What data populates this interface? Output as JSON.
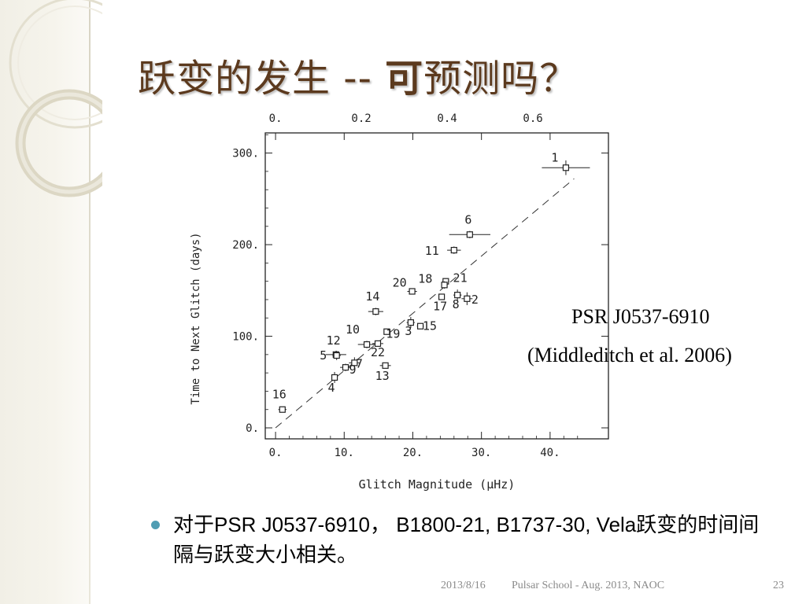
{
  "slide": {
    "title_part1": "跃变的发生 -- ",
    "title_part2": "可",
    "title_part3": "预测吗？",
    "annotation_line1": "PSR J0537-6910",
    "annotation_line2": "(Middleditch et al. 2006)",
    "bullet": "对于PSR J0537-6910， B1800-21, B1737-30, Vela跃变的时间间隔与跃变大小相关。",
    "footer_date": "2013/8/16",
    "footer_event": "Pulsar School  - Aug. 2013, NAOC",
    "footer_page": "23",
    "colors": {
      "title": "#5c3a1e",
      "bullet": "#4f9db3",
      "footer": "#8a8a8a"
    }
  },
  "chart_data": {
    "type": "scatter",
    "xlabel": "Glitch Magnitude (μHz)",
    "ylabel": "Time to Next Glitch (days)",
    "xlim": [
      -1.5,
      48.5
    ],
    "ylim": [
      -12,
      322
    ],
    "x_ticks": [
      "0.",
      "10.",
      "20.",
      "30.",
      "40."
    ],
    "y_ticks": [
      "0.",
      "100.",
      "200.",
      "300."
    ],
    "top_axis_ticks": [
      "0.",
      "0.2",
      "0.4",
      "0.6"
    ],
    "top_axis_values": [
      0,
      0.2,
      0.4,
      0.6
    ],
    "top_axis_scale": 62.5,
    "fit_line": {
      "x": [
        0,
        43.5
      ],
      "y": [
        0,
        272
      ]
    },
    "points": [
      {
        "label": "1",
        "x": 42.3,
        "y": 284,
        "xerr": 3.5,
        "yerr": 8
      },
      {
        "label": "2",
        "x": 27.9,
        "y": 141,
        "xerr": 0.8,
        "yerr": 7
      },
      {
        "label": "3",
        "x": 19.7,
        "y": 115,
        "xerr": 0.6,
        "yerr": 6
      },
      {
        "label": "4",
        "x": 8.6,
        "y": 55,
        "xerr": 0.4,
        "yerr": 6
      },
      {
        "label": "5",
        "x": 8.8,
        "y": 80,
        "xerr": 1.5,
        "yerr": 4
      },
      {
        "label": "6",
        "x": 28.3,
        "y": 211,
        "xerr": 3.0,
        "yerr": 4
      },
      {
        "label": "7",
        "x": 11.5,
        "y": 71,
        "xerr": 0.8,
        "yerr": 6
      },
      {
        "label": "8",
        "x": 26.5,
        "y": 145,
        "xerr": 0.6,
        "yerr": 6
      },
      {
        "label": "9",
        "x": 10.2,
        "y": 66,
        "xerr": 0.8,
        "yerr": 4
      },
      {
        "label": "10",
        "x": 13.3,
        "y": 91,
        "xerr": 1.3,
        "yerr": 4
      },
      {
        "label": "11",
        "x": 26.0,
        "y": 194,
        "xerr": 1.0,
        "yerr": 4
      },
      {
        "label": "12",
        "x": 8.9,
        "y": 79,
        "xerr": 0.6,
        "yerr": 5
      },
      {
        "label": "13",
        "x": 16.0,
        "y": 68,
        "xerr": 0.8,
        "yerr": 2
      },
      {
        "label": "14",
        "x": 14.6,
        "y": 127,
        "xerr": 1.1,
        "yerr": 4
      },
      {
        "label": "15",
        "x": 21.1,
        "y": 111,
        "xerr": 0.5,
        "yerr": 3
      },
      {
        "label": "16",
        "x": 1.0,
        "y": 20,
        "xerr": 0.6,
        "yerr": 3
      },
      {
        "label": "17",
        "x": 24.2,
        "y": 143,
        "xerr": 0.4,
        "yerr": 3
      },
      {
        "label": "18",
        "x": 24.8,
        "y": 160,
        "xerr": 0.5,
        "yerr": 3
      },
      {
        "label": "19",
        "x": 16.2,
        "y": 105,
        "xerr": 0.4,
        "yerr": 3
      },
      {
        "label": "20",
        "x": 19.9,
        "y": 149,
        "xerr": 0.7,
        "yerr": 3
      },
      {
        "label": "21",
        "x": 24.6,
        "y": 156,
        "xerr": 0.4,
        "yerr": 4
      },
      {
        "label": "22",
        "x": 14.9,
        "y": 92,
        "xerr": 0.8,
        "yerr": 3
      }
    ]
  }
}
